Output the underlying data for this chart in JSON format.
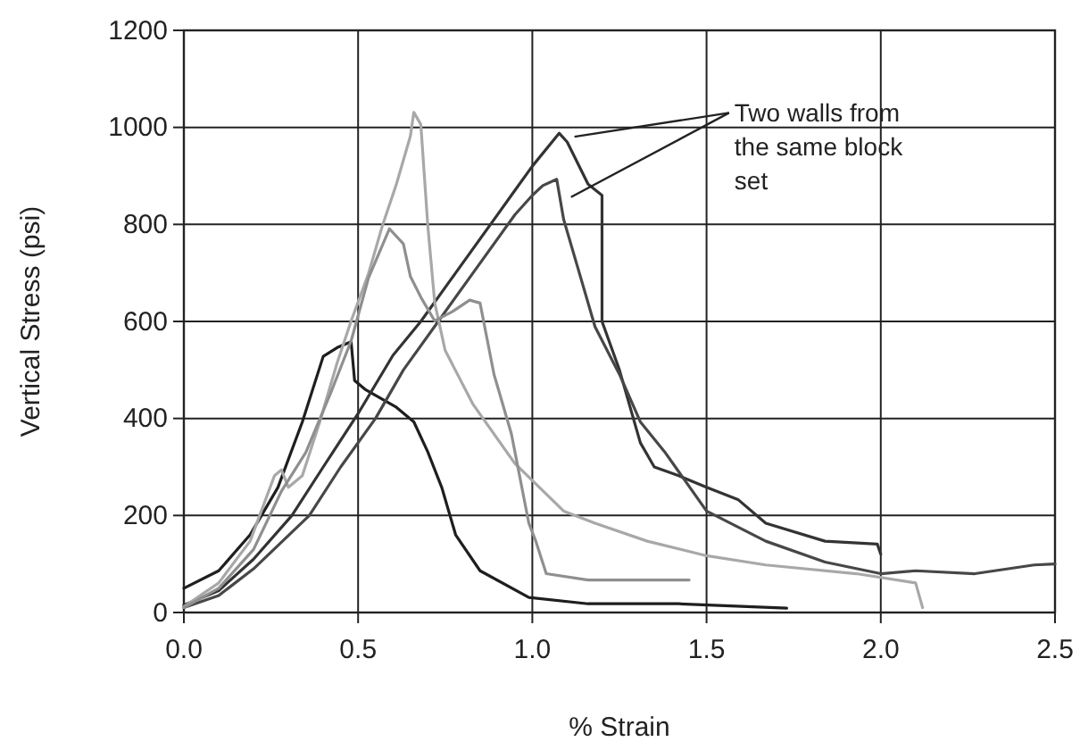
{
  "chart_data": {
    "type": "line",
    "xlabel": "% Strain",
    "ylabel": "Vertical Stress (psi)",
    "xlim": [
      0,
      2.5
    ],
    "xticks": [
      {
        "value": 0,
        "label": "0.0"
      },
      {
        "value": 0.5,
        "label": "0.5"
      },
      {
        "value": 1,
        "label": "1.0"
      },
      {
        "value": 1.5,
        "label": "1.5"
      },
      {
        "value": 2,
        "label": "2.0"
      },
      {
        "value": 2.5,
        "label": "2.5"
      }
    ],
    "ylim": [
      0,
      1200
    ],
    "yticks": [
      0,
      200,
      400,
      600,
      800,
      1000,
      1200
    ],
    "grid": true,
    "marker": "none",
    "line_style": "solid",
    "annotations": [
      {
        "text": "Two walls from the same block set",
        "x": 1.08,
        "y": 988
      }
    ],
    "series": [
      {
        "color": "#1e1e1e",
        "x": [
          0,
          0.1,
          0.19,
          0.27,
          0.34,
          0.4,
          0.44,
          0.48,
          0.49,
          0.52,
          0.61,
          0.66,
          0.7,
          0.74,
          0.78,
          0.85,
          0.99,
          1.16,
          1.42,
          1.73
        ],
        "values": [
          50,
          86,
          160,
          258,
          393,
          528,
          546,
          558,
          478,
          460,
          423,
          393,
          331,
          258,
          160,
          86,
          31,
          18,
          18,
          9
        ]
      },
      {
        "color": "#333333",
        "x": [
          0,
          0.1,
          0.2,
          0.31,
          0.4,
          0.5,
          0.6,
          0.68,
          0.78,
          0.88,
          0.95,
          1,
          1.077,
          1.1,
          1.16,
          1.2,
          1.2,
          1.25,
          1.31,
          1.35,
          1.42,
          1.5,
          1.59,
          1.67,
          1.84,
          1.99,
          2
        ],
        "values": [
          15,
          45,
          110,
          200,
          300,
          410,
          530,
          600,
          700,
          800,
          870,
          920,
          988,
          970,
          883,
          860,
          600,
          500,
          350,
          300,
          282,
          258,
          233,
          184,
          147,
          141,
          120
        ]
      },
      {
        "color": "#474747",
        "x": [
          0,
          0.1,
          0.2,
          0.36,
          0.45,
          0.55,
          0.63,
          0.73,
          0.83,
          0.95,
          1,
          1.03,
          1.07,
          1.09,
          1.13,
          1.18,
          1.25,
          1.31,
          1.38,
          1.5,
          1.67,
          1.84,
          2,
          2.1,
          2.27,
          2.44,
          2.5
        ],
        "values": [
          10,
          35,
          90,
          200,
          300,
          400,
          500,
          600,
          700,
          820,
          860,
          880,
          893,
          810,
          712,
          589,
          491,
          393,
          331,
          209,
          147,
          104,
          80,
          86,
          80,
          98,
          100
        ]
      },
      {
        "color": "#a8a8a8",
        "x": [
          0,
          0.1,
          0.19,
          0.26,
          0.28,
          0.3,
          0.34,
          0.39,
          0.44,
          0.48,
          0.53,
          0.57,
          0.61,
          0.65,
          0.66,
          0.68,
          0.7,
          0.72,
          0.75,
          0.83,
          0.95,
          1.09,
          1.18,
          1.33,
          1.5,
          1.67,
          1.93,
          2.1,
          2.12
        ],
        "values": [
          12,
          61,
          147,
          282,
          294,
          258,
          282,
          393,
          515,
          601,
          699,
          798,
          883,
          982,
          1031,
          1006,
          798,
          638,
          540,
          429,
          307,
          209,
          184,
          147,
          117,
          98,
          80,
          61,
          10
        ]
      },
      {
        "color": "#8f8f8f",
        "x": [
          0,
          0.1,
          0.2,
          0.28,
          0.35,
          0.42,
          0.48,
          0.53,
          0.59,
          0.63,
          0.65,
          0.68,
          0.72,
          0.77,
          0.82,
          0.85,
          0.89,
          0.94,
          0.99,
          1.01,
          1.04,
          1.16,
          1.45
        ],
        "values": [
          10,
          50,
          130,
          250,
          330,
          450,
          560,
          690,
          791,
          760,
          693,
          650,
          601,
          620,
          644,
          638,
          491,
          368,
          184,
          147,
          80,
          67,
          67
        ]
      }
    ]
  }
}
